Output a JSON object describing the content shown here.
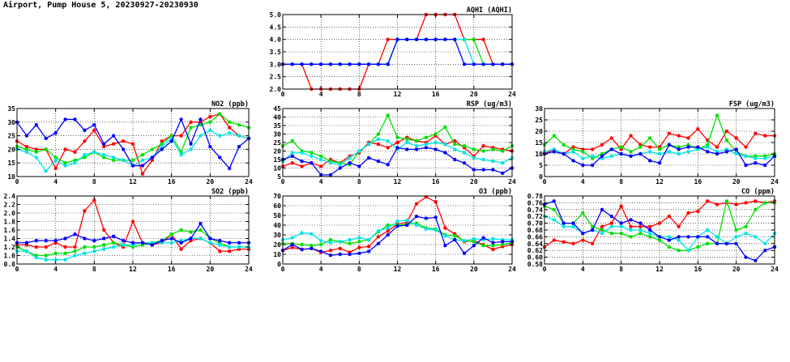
{
  "page_title": "Airport, Pump House 5, 20230927-20230930",
  "colors": {
    "red": "#ff0000",
    "green": "#00e000",
    "cyan": "#00e5e5",
    "blue": "#0000ff",
    "grid": "#000000"
  },
  "chart_data": [
    {
      "type": "line",
      "title": "AQHI (AQHI)",
      "xlabel": "",
      "ylabel": "",
      "xlim": [
        0,
        24
      ],
      "ylim": [
        2.0,
        5.0
      ],
      "xticks": [
        0,
        4,
        8,
        12,
        16,
        20,
        24
      ],
      "yticks": [
        2.0,
        2.5,
        3.0,
        3.5,
        4.0,
        4.5,
        5.0
      ],
      "grid": true,
      "x": [
        0,
        1,
        2,
        3,
        4,
        5,
        6,
        7,
        8,
        9,
        10,
        11,
        12,
        13,
        14,
        15,
        16,
        17,
        18,
        19,
        20,
        21,
        22,
        23,
        24
      ],
      "series": [
        {
          "color": "red",
          "values": [
            3,
            3,
            3,
            2,
            2,
            2,
            2,
            2,
            2,
            3,
            3,
            4,
            4,
            4,
            4,
            5,
            5,
            5,
            5,
            4,
            4,
            4,
            3,
            3,
            3
          ]
        },
        {
          "color": "green",
          "values": [
            3,
            3,
            3,
            3,
            3,
            3,
            3,
            3,
            3,
            3,
            3,
            3,
            4,
            4,
            4,
            4,
            4,
            4,
            4,
            4,
            4,
            3,
            3,
            3,
            3
          ]
        },
        {
          "color": "cyan",
          "values": [
            3,
            3,
            3,
            3,
            3,
            3,
            3,
            3,
            3,
            3,
            3,
            3,
            4,
            4,
            4,
            4,
            4,
            4,
            4,
            4,
            3,
            3,
            3,
            3,
            3
          ]
        },
        {
          "color": "blue",
          "values": [
            3,
            3,
            3,
            3,
            3,
            3,
            3,
            3,
            3,
            3,
            3,
            3,
            4,
            4,
            4,
            4,
            4,
            4,
            4,
            3,
            3,
            3,
            3,
            3,
            3
          ]
        }
      ]
    },
    {
      "type": "line",
      "title": "NO2 (ppb)",
      "xlabel": "",
      "ylabel": "",
      "xlim": [
        0,
        24
      ],
      "ylim": [
        10,
        35
      ],
      "xticks": [
        0,
        4,
        8,
        12,
        16,
        20,
        24
      ],
      "yticks": [
        10,
        15,
        20,
        25,
        30,
        35
      ],
      "grid": true,
      "x": [
        0,
        1,
        2,
        3,
        4,
        5,
        6,
        7,
        8,
        9,
        10,
        11,
        12,
        13,
        14,
        15,
        16,
        17,
        18,
        19,
        20,
        21,
        22,
        23,
        24
      ],
      "series": [
        {
          "color": "red",
          "values": [
            23,
            21,
            20,
            20,
            13,
            20,
            19,
            23,
            27,
            21,
            22,
            23,
            22,
            11,
            16,
            23,
            25,
            25,
            30,
            30,
            32,
            33,
            28,
            25,
            24
          ]
        },
        {
          "color": "green",
          "values": [
            21,
            20,
            19,
            20,
            17,
            15,
            16,
            17,
            19,
            17,
            16,
            16,
            16,
            18,
            20,
            22,
            25,
            19,
            28,
            29,
            30,
            33,
            30,
            29,
            28
          ]
        },
        {
          "color": "cyan",
          "values": [
            20,
            19,
            17,
            12,
            16,
            14,
            15,
            18,
            19,
            18,
            17,
            16,
            14,
            16,
            17,
            21,
            24,
            18,
            20,
            25,
            27,
            25,
            26,
            25,
            24
          ]
        },
        {
          "color": "blue",
          "values": [
            30,
            25,
            29,
            24,
            26,
            31,
            31,
            27,
            29,
            22,
            25,
            20,
            14,
            14,
            17,
            20,
            23,
            31,
            22,
            31,
            21,
            17,
            13,
            21,
            24
          ]
        }
      ]
    },
    {
      "type": "line",
      "title": "RSP (ug/m3)",
      "xlabel": "",
      "ylabel": "",
      "xlim": [
        0,
        24
      ],
      "ylim": [
        5,
        45
      ],
      "xticks": [
        0,
        4,
        8,
        12,
        16,
        20,
        24
      ],
      "yticks": [
        5,
        10,
        15,
        20,
        25,
        30,
        35,
        40,
        45
      ],
      "grid": true,
      "x": [
        0,
        1,
        2,
        3,
        4,
        5,
        6,
        7,
        8,
        9,
        10,
        11,
        12,
        13,
        14,
        15,
        16,
        17,
        18,
        19,
        20,
        21,
        22,
        23,
        24
      ],
      "series": [
        {
          "color": "red",
          "values": [
            11,
            13,
            11,
            13,
            11,
            15,
            13,
            17,
            19,
            25,
            24,
            22,
            25,
            28,
            26,
            25,
            29,
            24,
            26,
            22,
            17,
            23,
            22,
            21,
            20
          ]
        },
        {
          "color": "green",
          "values": [
            23,
            26,
            20,
            19,
            17,
            14,
            13,
            12,
            20,
            24,
            30,
            41,
            28,
            27,
            26,
            28,
            30,
            34,
            24,
            23,
            21,
            20,
            21,
            20,
            23
          ]
        },
        {
          "color": "cyan",
          "values": [
            14,
            19,
            19,
            17,
            15,
            13,
            12,
            16,
            20,
            24,
            27,
            26,
            21,
            25,
            23,
            24,
            25,
            24,
            21,
            19,
            16,
            15,
            14,
            13,
            16
          ]
        },
        {
          "color": "blue",
          "values": [
            15,
            17,
            14,
            13,
            6,
            6,
            10,
            13,
            11,
            16,
            14,
            12,
            22,
            21,
            21,
            22,
            21,
            19,
            15,
            13,
            9,
            9,
            9,
            7,
            10
          ]
        }
      ]
    },
    {
      "type": "line",
      "title": "FSP (ug/m3)",
      "xlabel": "",
      "ylabel": "",
      "xlim": [
        0,
        24
      ],
      "ylim": [
        0,
        30
      ],
      "xticks": [
        0,
        4,
        8,
        12,
        16,
        20,
        24
      ],
      "yticks": [
        0,
        5,
        10,
        15,
        20,
        25,
        30
      ],
      "grid": true,
      "x": [
        0,
        1,
        2,
        3,
        4,
        5,
        6,
        7,
        8,
        9,
        10,
        11,
        12,
        13,
        14,
        15,
        16,
        17,
        18,
        19,
        20,
        21,
        22,
        23,
        24
      ],
      "series": [
        {
          "color": "red",
          "values": [
            10,
            12,
            10,
            13,
            12,
            12,
            14,
            17,
            12,
            18,
            14,
            13,
            13,
            19,
            18,
            17,
            21,
            16,
            13,
            20,
            17,
            13,
            19,
            18,
            18
          ]
        },
        {
          "color": "green",
          "values": [
            14,
            18,
            14,
            12,
            11,
            8,
            10,
            12,
            13,
            11,
            13,
            17,
            12,
            14,
            13,
            14,
            12,
            14,
            27,
            16,
            11,
            9,
            9,
            9,
            10
          ]
        },
        {
          "color": "cyan",
          "values": [
            11,
            12,
            10,
            11,
            8,
            9,
            8,
            9,
            10,
            9,
            10,
            11,
            10,
            11,
            10,
            11,
            12,
            13,
            11,
            12,
            10,
            9,
            8,
            8,
            9
          ]
        },
        {
          "color": "blue",
          "values": [
            10,
            11,
            10,
            7,
            5,
            5,
            9,
            12,
            10,
            9,
            10,
            7,
            6,
            14,
            12,
            13,
            13,
            11,
            10,
            11,
            12,
            5,
            6,
            5,
            9
          ]
        }
      ]
    },
    {
      "type": "line",
      "title": "SO2 (ppb)",
      "xlabel": "",
      "ylabel": "",
      "xlim": [
        0,
        24
      ],
      "ylim": [
        0.8,
        2.4
      ],
      "xticks": [
        0,
        4,
        8,
        12,
        16,
        20,
        24
      ],
      "yticks": [
        0.8,
        1.0,
        1.2,
        1.4,
        1.6,
        1.8,
        2.0,
        2.2,
        2.4
      ],
      "grid": true,
      "x": [
        0,
        1,
        2,
        3,
        4,
        5,
        6,
        7,
        8,
        9,
        10,
        11,
        12,
        13,
        14,
        15,
        16,
        17,
        18,
        19,
        20,
        21,
        22,
        23,
        24
      ],
      "series": [
        {
          "color": "red",
          "values": [
            1.25,
            1.25,
            1.2,
            1.2,
            1.3,
            1.2,
            1.2,
            2.05,
            2.3,
            1.6,
            1.3,
            1.2,
            1.8,
            1.3,
            1.25,
            1.3,
            1.5,
            1.15,
            1.35,
            1.4,
            1.3,
            1.1,
            1.1,
            1.15,
            1.15
          ]
        },
        {
          "color": "green",
          "values": [
            1.2,
            1.1,
            1.0,
            1.0,
            1.05,
            1.05,
            1.1,
            1.2,
            1.2,
            1.25,
            1.3,
            1.25,
            1.2,
            1.25,
            1.3,
            1.35,
            1.5,
            1.6,
            1.55,
            1.6,
            1.4,
            1.3,
            1.2,
            1.2,
            1.2
          ]
        },
        {
          "color": "cyan",
          "values": [
            1.1,
            1.1,
            0.95,
            0.9,
            0.9,
            0.9,
            1.0,
            1.05,
            1.1,
            1.15,
            1.2,
            1.25,
            1.25,
            1.3,
            1.3,
            1.3,
            1.3,
            1.35,
            1.4,
            1.4,
            1.3,
            1.25,
            1.2,
            1.2,
            1.2
          ]
        },
        {
          "color": "blue",
          "values": [
            1.3,
            1.3,
            1.35,
            1.35,
            1.35,
            1.4,
            1.5,
            1.4,
            1.35,
            1.4,
            1.45,
            1.35,
            1.3,
            1.3,
            1.25,
            1.35,
            1.4,
            1.3,
            1.4,
            1.75,
            1.4,
            1.35,
            1.3,
            1.3,
            1.3
          ]
        }
      ]
    },
    {
      "type": "line",
      "title": "O3 (ppb)",
      "xlabel": "",
      "ylabel": "",
      "xlim": [
        0,
        24
      ],
      "ylim": [
        0,
        70
      ],
      "xticks": [
        0,
        4,
        8,
        12,
        16,
        20,
        24
      ],
      "yticks": [
        0,
        10,
        20,
        30,
        40,
        50,
        60,
        70
      ],
      "grid": true,
      "x": [
        0,
        1,
        2,
        3,
        4,
        5,
        6,
        7,
        8,
        9,
        10,
        11,
        12,
        13,
        14,
        15,
        16,
        17,
        18,
        19,
        20,
        21,
        22,
        23,
        24
      ],
      "series": [
        {
          "color": "red",
          "values": [
            14,
            17,
            15,
            16,
            12,
            14,
            16,
            12,
            17,
            18,
            28,
            34,
            41,
            43,
            62,
            69,
            64,
            37,
            31,
            23,
            24,
            20,
            15,
            18,
            20
          ]
        },
        {
          "color": "green",
          "values": [
            21,
            21,
            20,
            19,
            20,
            25,
            23,
            21,
            23,
            25,
            33,
            40,
            40,
            41,
            42,
            37,
            36,
            30,
            29,
            24,
            23,
            19,
            19,
            20,
            22
          ]
        },
        {
          "color": "cyan",
          "values": [
            25,
            27,
            32,
            31,
            24,
            22,
            23,
            25,
            27,
            25,
            34,
            37,
            44,
            45,
            40,
            36,
            35,
            29,
            25,
            24,
            26,
            25,
            26,
            25,
            25
          ]
        },
        {
          "color": "blue",
          "values": [
            14,
            20,
            15,
            16,
            13,
            9,
            10,
            10,
            11,
            13,
            21,
            30,
            39,
            40,
            49,
            47,
            48,
            19,
            25,
            11,
            19,
            27,
            22,
            23,
            23
          ]
        }
      ]
    },
    {
      "type": "line",
      "title": "CO (ppm)",
      "xlabel": "",
      "ylabel": "",
      "xlim": [
        0,
        24
      ],
      "ylim": [
        0.58,
        0.78
      ],
      "xticks": [
        0,
        4,
        8,
        12,
        16,
        20,
        24
      ],
      "yticks": [
        0.58,
        0.6,
        0.62,
        0.64,
        0.66,
        0.68,
        0.7,
        0.72,
        0.74,
        0.76,
        0.78
      ],
      "grid": true,
      "x": [
        0,
        1,
        2,
        3,
        4,
        5,
        6,
        7,
        8,
        9,
        10,
        11,
        12,
        13,
        14,
        15,
        16,
        17,
        18,
        19,
        20,
        21,
        22,
        23,
        24
      ],
      "series": [
        {
          "color": "red",
          "values": [
            0.63,
            0.65,
            0.645,
            0.64,
            0.65,
            0.64,
            0.69,
            0.7,
            0.75,
            0.69,
            0.69,
            0.69,
            0.7,
            0.72,
            0.69,
            0.73,
            0.735,
            0.765,
            0.755,
            0.76,
            0.755,
            0.76,
            0.765,
            0.76,
            0.765
          ]
        },
        {
          "color": "green",
          "values": [
            0.75,
            0.74,
            0.7,
            0.7,
            0.73,
            0.69,
            0.68,
            0.67,
            0.67,
            0.66,
            0.67,
            0.66,
            0.65,
            0.63,
            0.62,
            0.62,
            0.63,
            0.64,
            0.64,
            0.765,
            0.68,
            0.69,
            0.74,
            0.76,
            0.76
          ]
        },
        {
          "color": "cyan",
          "values": [
            0.72,
            0.71,
            0.69,
            0.69,
            0.67,
            0.68,
            0.67,
            0.69,
            0.69,
            0.68,
            0.68,
            0.67,
            0.66,
            0.66,
            0.65,
            0.62,
            0.66,
            0.68,
            0.66,
            0.64,
            0.66,
            0.67,
            0.66,
            0.64,
            0.67
          ]
        },
        {
          "color": "blue",
          "values": [
            0.755,
            0.765,
            0.7,
            0.7,
            0.67,
            0.68,
            0.74,
            0.72,
            0.7,
            0.71,
            0.7,
            0.68,
            0.66,
            0.65,
            0.66,
            0.66,
            0.66,
            0.66,
            0.64,
            0.64,
            0.64,
            0.6,
            0.59,
            0.62,
            0.63
          ]
        }
      ]
    }
  ]
}
